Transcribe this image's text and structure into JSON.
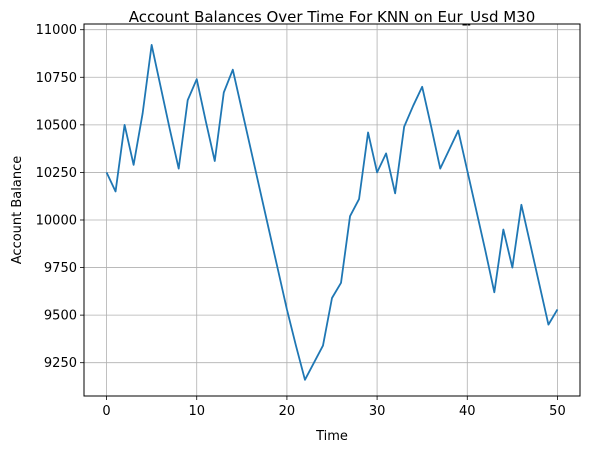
{
  "chart_data": {
    "type": "line",
    "title": "Account Balances Over Time For KNN on Eur_Usd M30",
    "xlabel": "Time",
    "ylabel": "Account Balance",
    "xlim": [
      -2.5,
      52.5
    ],
    "ylim": [
      9075,
      11030
    ],
    "xticks": [
      0,
      10,
      20,
      30,
      40,
      50
    ],
    "yticks": [
      9250,
      9500,
      9750,
      10000,
      10250,
      10500,
      10750,
      11000
    ],
    "grid": true,
    "line_color": "#1f77b4",
    "series": [
      {
        "x": [
          0,
          1,
          2,
          3,
          4,
          5,
          6,
          7,
          8,
          9,
          10,
          11,
          12,
          13,
          14,
          15,
          16,
          17,
          18,
          19,
          20,
          21,
          22,
          23,
          24,
          25,
          26,
          27,
          28,
          29,
          30,
          31,
          32,
          33,
          34,
          35,
          36,
          37,
          38,
          39,
          40,
          41,
          42,
          43,
          44,
          45,
          46,
          47,
          48,
          49,
          50
        ],
        "values": [
          10250,
          10150,
          10500,
          10290,
          10560,
          10920,
          10700,
          10480,
          10270,
          10630,
          10740,
          10520,
          10310,
          10670,
          10790,
          10580,
          10370,
          10160,
          9950,
          9740,
          9530,
          9340,
          9160,
          9250,
          9340,
          9590,
          9670,
          10020,
          10110,
          10460,
          10250,
          10350,
          10140,
          10490,
          10600,
          10700,
          10490,
          10270,
          10370,
          10470,
          10260,
          10050,
          9840,
          9620,
          9950,
          9750,
          10080,
          9870,
          9660,
          9450,
          9530
        ]
      }
    ]
  }
}
